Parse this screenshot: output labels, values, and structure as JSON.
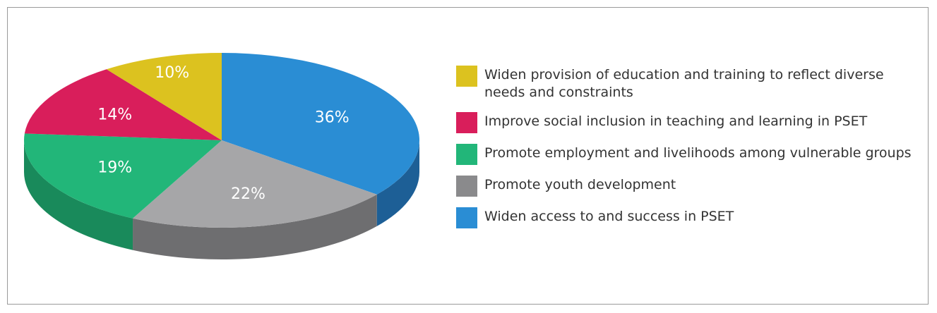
{
  "chart_data": {
    "type": "pie",
    "style": "3d",
    "slices": [
      {
        "label": "Widen access to and success in PSET",
        "value": 36,
        "display": "36%",
        "color": "#2a8dd4",
        "side_color": "#1d5f96"
      },
      {
        "label": "Promote youth development",
        "value": 22,
        "display": "22%",
        "color": "#a6a6a8",
        "side_color": "#6e6e70"
      },
      {
        "label": "Promote employment and livelihoods among vulnerable groups",
        "value": 19,
        "display": "19%",
        "color": "#22b679",
        "side_color": "#198a5b"
      },
      {
        "label": "Improve social inclusion in teaching and learning in PSET",
        "value": 14,
        "display": "14%",
        "color": "#d91e5b",
        "side_color": "#9e1642"
      },
      {
        "label": "Widen provision of education and training to reflect diverse needs and constraints",
        "value": 10,
        "display": "10%",
        "color": "#dcc21f",
        "side_color": "#a8931a"
      }
    ],
    "legend": {
      "placement": "right",
      "items": [
        {
          "label": "Widen provision of education and training to reflect diverse needs and constraints",
          "color": "#dcc21f"
        },
        {
          "label": "Improve social inclusion in teaching and learning in PSET",
          "color": "#d91e5b"
        },
        {
          "label": "Promote employment and livelihoods among vulnerable groups",
          "color": "#22b679"
        },
        {
          "label": "Promote youth development",
          "color": "#8a8a8c"
        },
        {
          "label": "Widen access to and success in PSET",
          "color": "#2a8dd4"
        }
      ]
    }
  }
}
